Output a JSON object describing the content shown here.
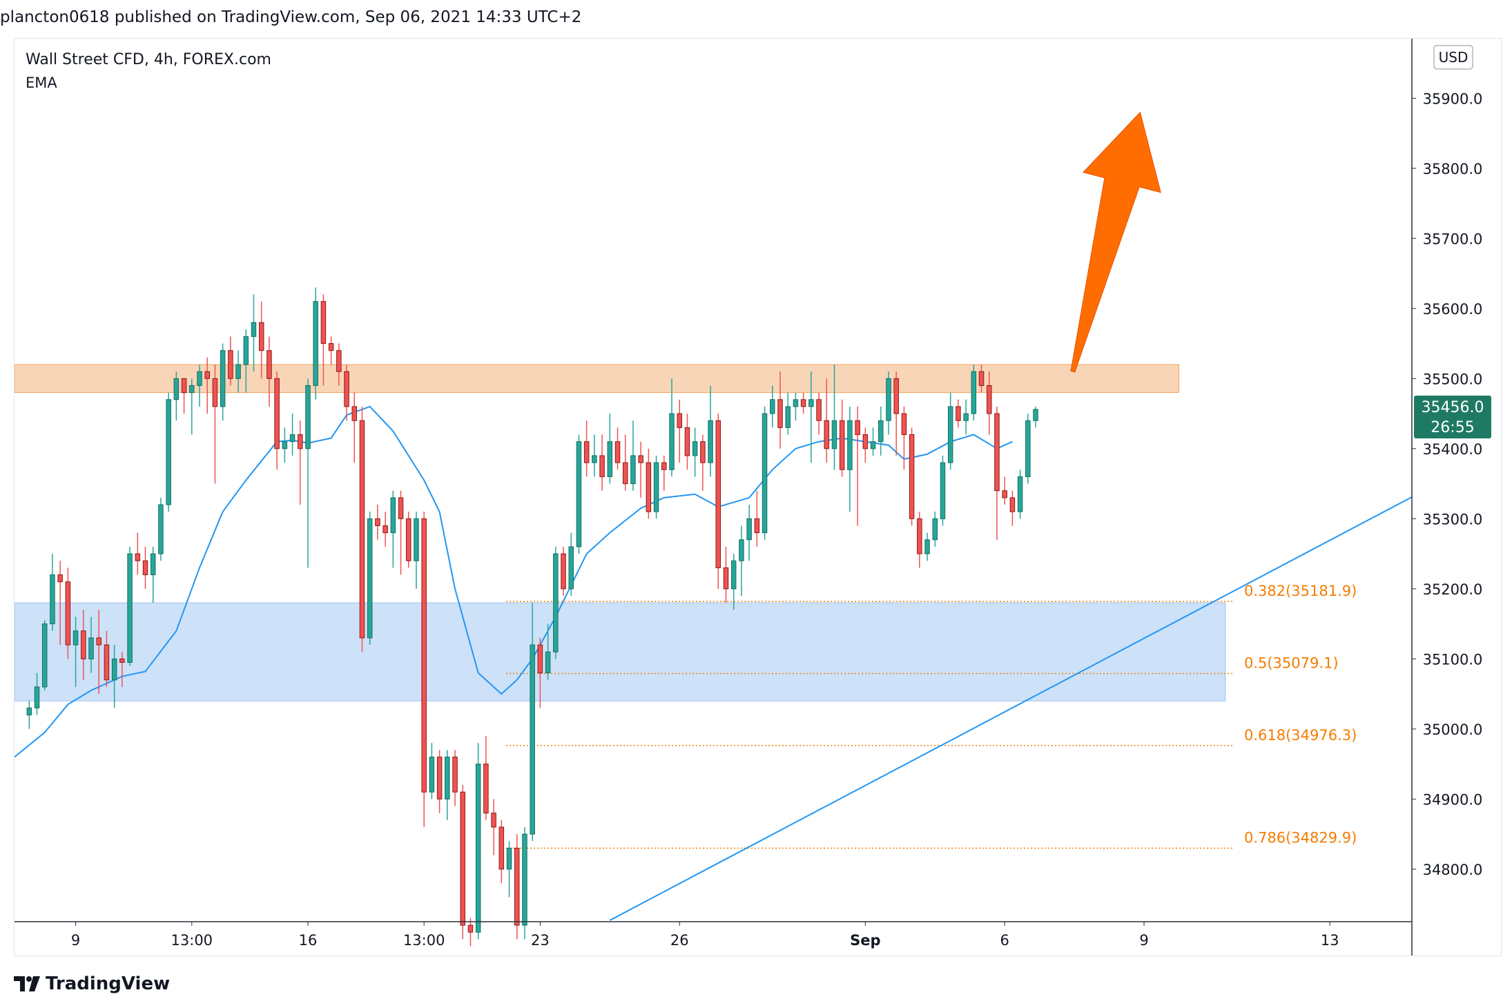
{
  "header": {
    "published": "plancton0618 published on TradingView.com, Sep 06, 2021 14:33 UTC+2"
  },
  "legend": {
    "symbol": "Wall Street CFD, 4h, FOREX.com",
    "indicator": "EMA"
  },
  "footer": {
    "brand": "TradingView"
  },
  "colors": {
    "up": "#26a69a",
    "up_dark": "#1b6e5f",
    "down": "#ef5350",
    "down_dark": "#8b1a1a",
    "ema": "#2196f3",
    "trendline": "#2196f3",
    "resistance_zone": "#f7c79f",
    "support_zone": "#bcd7f7",
    "fib": "#f57c00",
    "arrow": "#ff6d00",
    "price_badge": "#1e7a63"
  },
  "chart_data": {
    "type": "candlestick",
    "timeframe": "4h",
    "currency": "USD",
    "y_axis": {
      "ticks": [
        "35900.0",
        "35800.0",
        "35700.0",
        "35600.0",
        "35500.0",
        "35400.0",
        "35300.0",
        "35200.0",
        "35100.0",
        "35000.0",
        "34900.0",
        "34800.0"
      ],
      "range": [
        34725,
        35985
      ]
    },
    "x_axis": {
      "ticks": [
        {
          "label": "9",
          "bar": 6
        },
        {
          "label": "13:00",
          "bar": 21
        },
        {
          "label": "16",
          "bar": 36
        },
        {
          "label": "13:00",
          "bar": 51
        },
        {
          "label": "23",
          "bar": 66
        },
        {
          "label": "26",
          "bar": 84
        },
        {
          "label": "Sep",
          "bar": 108,
          "bold": true
        },
        {
          "label": "6",
          "bar": 126
        },
        {
          "label": "9",
          "bar": 144
        },
        {
          "label": "13",
          "bar": 168
        }
      ],
      "bar_range": [
        -1.9,
        178.6
      ]
    },
    "last_price": {
      "value": "35456.0",
      "countdown": "26:55",
      "price": 35456
    },
    "resistance_zone": {
      "low": 35480,
      "high": 35520,
      "bar_from": -1.9,
      "bar_to": 148.5
    },
    "support_zone": {
      "low": 35040,
      "high": 35180,
      "bar_from": -1.9,
      "bar_to": 154.5
    },
    "fibonacci": [
      {
        "label": "0.382(35181.9)",
        "value": 35181.9
      },
      {
        "label": "0.5(35079.1)",
        "value": 35079.1
      },
      {
        "label": "0.618(34976.3)",
        "value": 34976.3
      },
      {
        "label": "0.786(34829.9)",
        "value": 34829.9
      }
    ],
    "fib_bar_from": 61.6,
    "fib_bar_to": 155.5,
    "trendline": {
      "bar1": 75,
      "price1": 34727,
      "bar2": 178.6,
      "price2": 35331
    },
    "arrow": {
      "tail_bar": 134.8,
      "tail_price": 35510,
      "tip_bar": 143.5,
      "tip_price": 35880
    },
    "ema": [
      [
        -1.9,
        34960
      ],
      [
        2,
        34995
      ],
      [
        5,
        35035
      ],
      [
        8,
        35055
      ],
      [
        12,
        35075
      ],
      [
        15,
        35082
      ],
      [
        19,
        35140
      ],
      [
        22,
        35230
      ],
      [
        25,
        35310
      ],
      [
        28,
        35355
      ],
      [
        32,
        35410
      ],
      [
        34,
        35412
      ],
      [
        36,
        35408
      ],
      [
        39,
        35415
      ],
      [
        41,
        35448
      ],
      [
        44,
        35460
      ],
      [
        47,
        35425
      ],
      [
        51,
        35355
      ],
      [
        53,
        35310
      ],
      [
        55,
        35200
      ],
      [
        58,
        35080
      ],
      [
        61,
        35050
      ],
      [
        63,
        35070
      ],
      [
        65,
        35100
      ],
      [
        68,
        35160
      ],
      [
        72,
        35250
      ],
      [
        75,
        35280
      ],
      [
        79,
        35315
      ],
      [
        82,
        35330
      ],
      [
        86,
        35335
      ],
      [
        89,
        35317
      ],
      [
        93,
        35330
      ],
      [
        96,
        35370
      ],
      [
        99,
        35400
      ],
      [
        102,
        35410
      ],
      [
        105,
        35415
      ],
      [
        108,
        35410
      ],
      [
        111,
        35405
      ],
      [
        113,
        35385
      ],
      [
        116,
        35392
      ],
      [
        119,
        35410
      ],
      [
        122,
        35420
      ],
      [
        125,
        35400
      ],
      [
        127,
        35410
      ]
    ],
    "candles": [
      [
        35020,
        35030,
        35000,
        35040
      ],
      [
        35030,
        35060,
        35020,
        35080
      ],
      [
        35060,
        35150,
        35055,
        35155
      ],
      [
        35150,
        35220,
        35140,
        35250
      ],
      [
        35220,
        35210,
        35120,
        35240
      ],
      [
        35210,
        35120,
        35100,
        35230
      ],
      [
        35120,
        35140,
        35060,
        35160
      ],
      [
        35140,
        35100,
        35070,
        35170
      ],
      [
        35100,
        35130,
        35080,
        35160
      ],
      [
        35130,
        35120,
        35050,
        35170
      ],
      [
        35120,
        35070,
        35060,
        35140
      ],
      [
        35070,
        35100,
        35030,
        35120
      ],
      [
        35100,
        35095,
        35060,
        35110
      ],
      [
        35095,
        35250,
        35090,
        35260
      ],
      [
        35250,
        35240,
        35220,
        35280
      ],
      [
        35240,
        35220,
        35200,
        35260
      ],
      [
        35220,
        35250,
        35180,
        35260
      ],
      [
        35250,
        35320,
        35240,
        35330
      ],
      [
        35320,
        35470,
        35310,
        35480
      ],
      [
        35470,
        35500,
        35440,
        35510
      ],
      [
        35500,
        35480,
        35450,
        35500
      ],
      [
        35480,
        35490,
        35420,
        35500
      ],
      [
        35490,
        35510,
        35460,
        35520
      ],
      [
        35510,
        35500,
        35450,
        35530
      ],
      [
        35500,
        35460,
        35350,
        35520
      ],
      [
        35460,
        35540,
        35440,
        35550
      ],
      [
        35540,
        35500,
        35490,
        35560
      ],
      [
        35500,
        35520,
        35480,
        35540
      ],
      [
        35520,
        35560,
        35480,
        35570
      ],
      [
        35560,
        35580,
        35510,
        35620
      ],
      [
        35580,
        35540,
        35500,
        35610
      ],
      [
        35540,
        35500,
        35460,
        35560
      ],
      [
        35500,
        35400,
        35370,
        35510
      ],
      [
        35400,
        35410,
        35380,
        35430
      ],
      [
        35410,
        35420,
        35390,
        35450
      ],
      [
        35420,
        35400,
        35320,
        35440
      ],
      [
        35400,
        35490,
        35230,
        35500
      ],
      [
        35490,
        35610,
        35470,
        35630
      ],
      [
        35610,
        35550,
        35490,
        35620
      ],
      [
        35550,
        35540,
        35520,
        35560
      ],
      [
        35540,
        35510,
        35490,
        35550
      ],
      [
        35510,
        35460,
        35440,
        35520
      ],
      [
        35460,
        35440,
        35380,
        35480
      ],
      [
        35440,
        35130,
        35110,
        35460
      ],
      [
        35130,
        35300,
        35120,
        35310
      ],
      [
        35300,
        35290,
        35270,
        35320
      ],
      [
        35290,
        35280,
        35260,
        35310
      ],
      [
        35280,
        35330,
        35230,
        35340
      ],
      [
        35330,
        35300,
        35220,
        35340
      ],
      [
        35300,
        35240,
        35230,
        35310
      ],
      [
        35240,
        35300,
        35200,
        35310
      ],
      [
        35300,
        34910,
        34860,
        35310
      ],
      [
        34910,
        34960,
        34900,
        34980
      ],
      [
        34960,
        34900,
        34880,
        34970
      ],
      [
        34900,
        34960,
        34870,
        34970
      ],
      [
        34960,
        34910,
        34890,
        34970
      ],
      [
        34910,
        34720,
        34700,
        34920
      ],
      [
        34720,
        34710,
        34690,
        34730
      ],
      [
        34710,
        34950,
        34700,
        34980
      ],
      [
        34950,
        34880,
        34870,
        34990
      ],
      [
        34880,
        34860,
        34820,
        34900
      ],
      [
        34860,
        34800,
        34780,
        34870
      ],
      [
        34800,
        34830,
        34760,
        34840
      ],
      [
        34830,
        34720,
        34700,
        34850
      ],
      [
        34720,
        34850,
        34700,
        34860
      ],
      [
        34850,
        35120,
        34840,
        35180
      ],
      [
        35120,
        35080,
        35030,
        35130
      ],
      [
        35080,
        35110,
        35070,
        35150
      ],
      [
        35110,
        35250,
        35100,
        35260
      ],
      [
        35250,
        35200,
        35190,
        35260
      ],
      [
        35200,
        35260,
        35190,
        35280
      ],
      [
        35260,
        35410,
        35250,
        35420
      ],
      [
        35410,
        35380,
        35360,
        35440
      ],
      [
        35380,
        35390,
        35360,
        35420
      ],
      [
        35390,
        35360,
        35340,
        35420
      ],
      [
        35360,
        35410,
        35350,
        35450
      ],
      [
        35410,
        35380,
        35370,
        35430
      ],
      [
        35380,
        35350,
        35340,
        35420
      ],
      [
        35350,
        35390,
        35340,
        35440
      ],
      [
        35390,
        35380,
        35330,
        35410
      ],
      [
        35380,
        35310,
        35300,
        35400
      ],
      [
        35310,
        35380,
        35300,
        35390
      ],
      [
        35380,
        35370,
        35340,
        35390
      ],
      [
        35370,
        35450,
        35360,
        35500
      ],
      [
        35450,
        35430,
        35380,
        35470
      ],
      [
        35430,
        35390,
        35370,
        35450
      ],
      [
        35390,
        35410,
        35360,
        35430
      ],
      [
        35410,
        35380,
        35340,
        35420
      ],
      [
        35380,
        35440,
        35360,
        35490
      ],
      [
        35440,
        35230,
        35200,
        35450
      ],
      [
        35230,
        35200,
        35180,
        35260
      ],
      [
        35200,
        35240,
        35170,
        35250
      ],
      [
        35240,
        35270,
        35190,
        35290
      ],
      [
        35270,
        35300,
        35240,
        35320
      ],
      [
        35300,
        35280,
        35260,
        35340
      ],
      [
        35280,
        35450,
        35270,
        35460
      ],
      [
        35450,
        35470,
        35430,
        35490
      ],
      [
        35470,
        35430,
        35400,
        35510
      ],
      [
        35430,
        35460,
        35420,
        35480
      ],
      [
        35460,
        35470,
        35440,
        35480
      ],
      [
        35470,
        35460,
        35450,
        35480
      ],
      [
        35460,
        35470,
        35380,
        35510
      ],
      [
        35470,
        35440,
        35420,
        35480
      ],
      [
        35440,
        35400,
        35380,
        35500
      ],
      [
        35400,
        35440,
        35370,
        35520
      ],
      [
        35440,
        35370,
        35360,
        35470
      ],
      [
        35370,
        35440,
        35310,
        35460
      ],
      [
        35440,
        35420,
        35290,
        35460
      ],
      [
        35420,
        35400,
        35380,
        35430
      ],
      [
        35400,
        35410,
        35390,
        35430
      ],
      [
        35410,
        35440,
        35390,
        35460
      ],
      [
        35440,
        35500,
        35420,
        35510
      ],
      [
        35500,
        35450,
        35390,
        35510
      ],
      [
        35450,
        35420,
        35370,
        35460
      ],
      [
        35420,
        35300,
        35290,
        35430
      ],
      [
        35300,
        35250,
        35230,
        35310
      ],
      [
        35250,
        35270,
        35240,
        35280
      ],
      [
        35270,
        35300,
        35260,
        35310
      ],
      [
        35300,
        35380,
        35290,
        35390
      ],
      [
        35380,
        35460,
        35370,
        35480
      ],
      [
        35460,
        35440,
        35430,
        35470
      ],
      [
        35440,
        35450,
        35420,
        35470
      ],
      [
        35450,
        35510,
        35440,
        35520
      ],
      [
        35510,
        35490,
        35480,
        35520
      ],
      [
        35490,
        35450,
        35420,
        35510
      ],
      [
        35450,
        35340,
        35270,
        35460
      ],
      [
        35340,
        35330,
        35320,
        35360
      ],
      [
        35330,
        35310,
        35290,
        35340
      ],
      [
        35310,
        35360,
        35300,
        35370
      ],
      [
        35360,
        35440,
        35350,
        35450
      ],
      [
        35440,
        35456,
        35430,
        35460
      ]
    ]
  }
}
